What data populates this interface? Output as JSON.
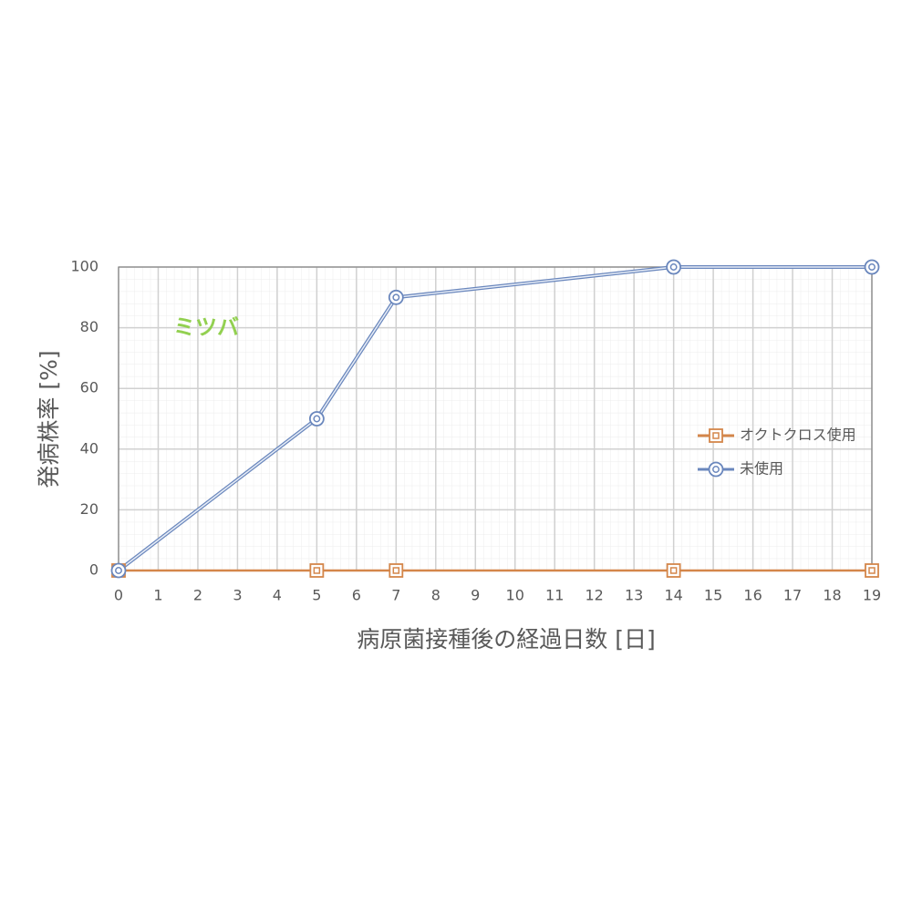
{
  "chart_data": {
    "type": "line",
    "x_label": "病原菌接種後の経過日数 [日]",
    "y_label": "発病株率 [%]",
    "annotation": "ミツバ",
    "annotation_color": "#92d050",
    "x": [
      0,
      5,
      7,
      14,
      19
    ],
    "series": [
      {
        "name": "オクトクロス使用",
        "color": "#d4864a",
        "marker": "square",
        "values": [
          0,
          0,
          0,
          0,
          0
        ]
      },
      {
        "name": "未使用",
        "color": "#6a87bd",
        "marker": "circle",
        "values": [
          0,
          50,
          90,
          100,
          100
        ]
      }
    ],
    "xlim": [
      0,
      19
    ],
    "xticks": [
      0,
      1,
      2,
      3,
      4,
      5,
      6,
      7,
      8,
      9,
      10,
      11,
      12,
      13,
      14,
      15,
      16,
      17,
      18,
      19
    ],
    "ylim": [
      0,
      100
    ],
    "yticks": [
      0,
      20,
      40,
      60,
      80,
      100
    ],
    "grid": true,
    "legend": "right"
  }
}
